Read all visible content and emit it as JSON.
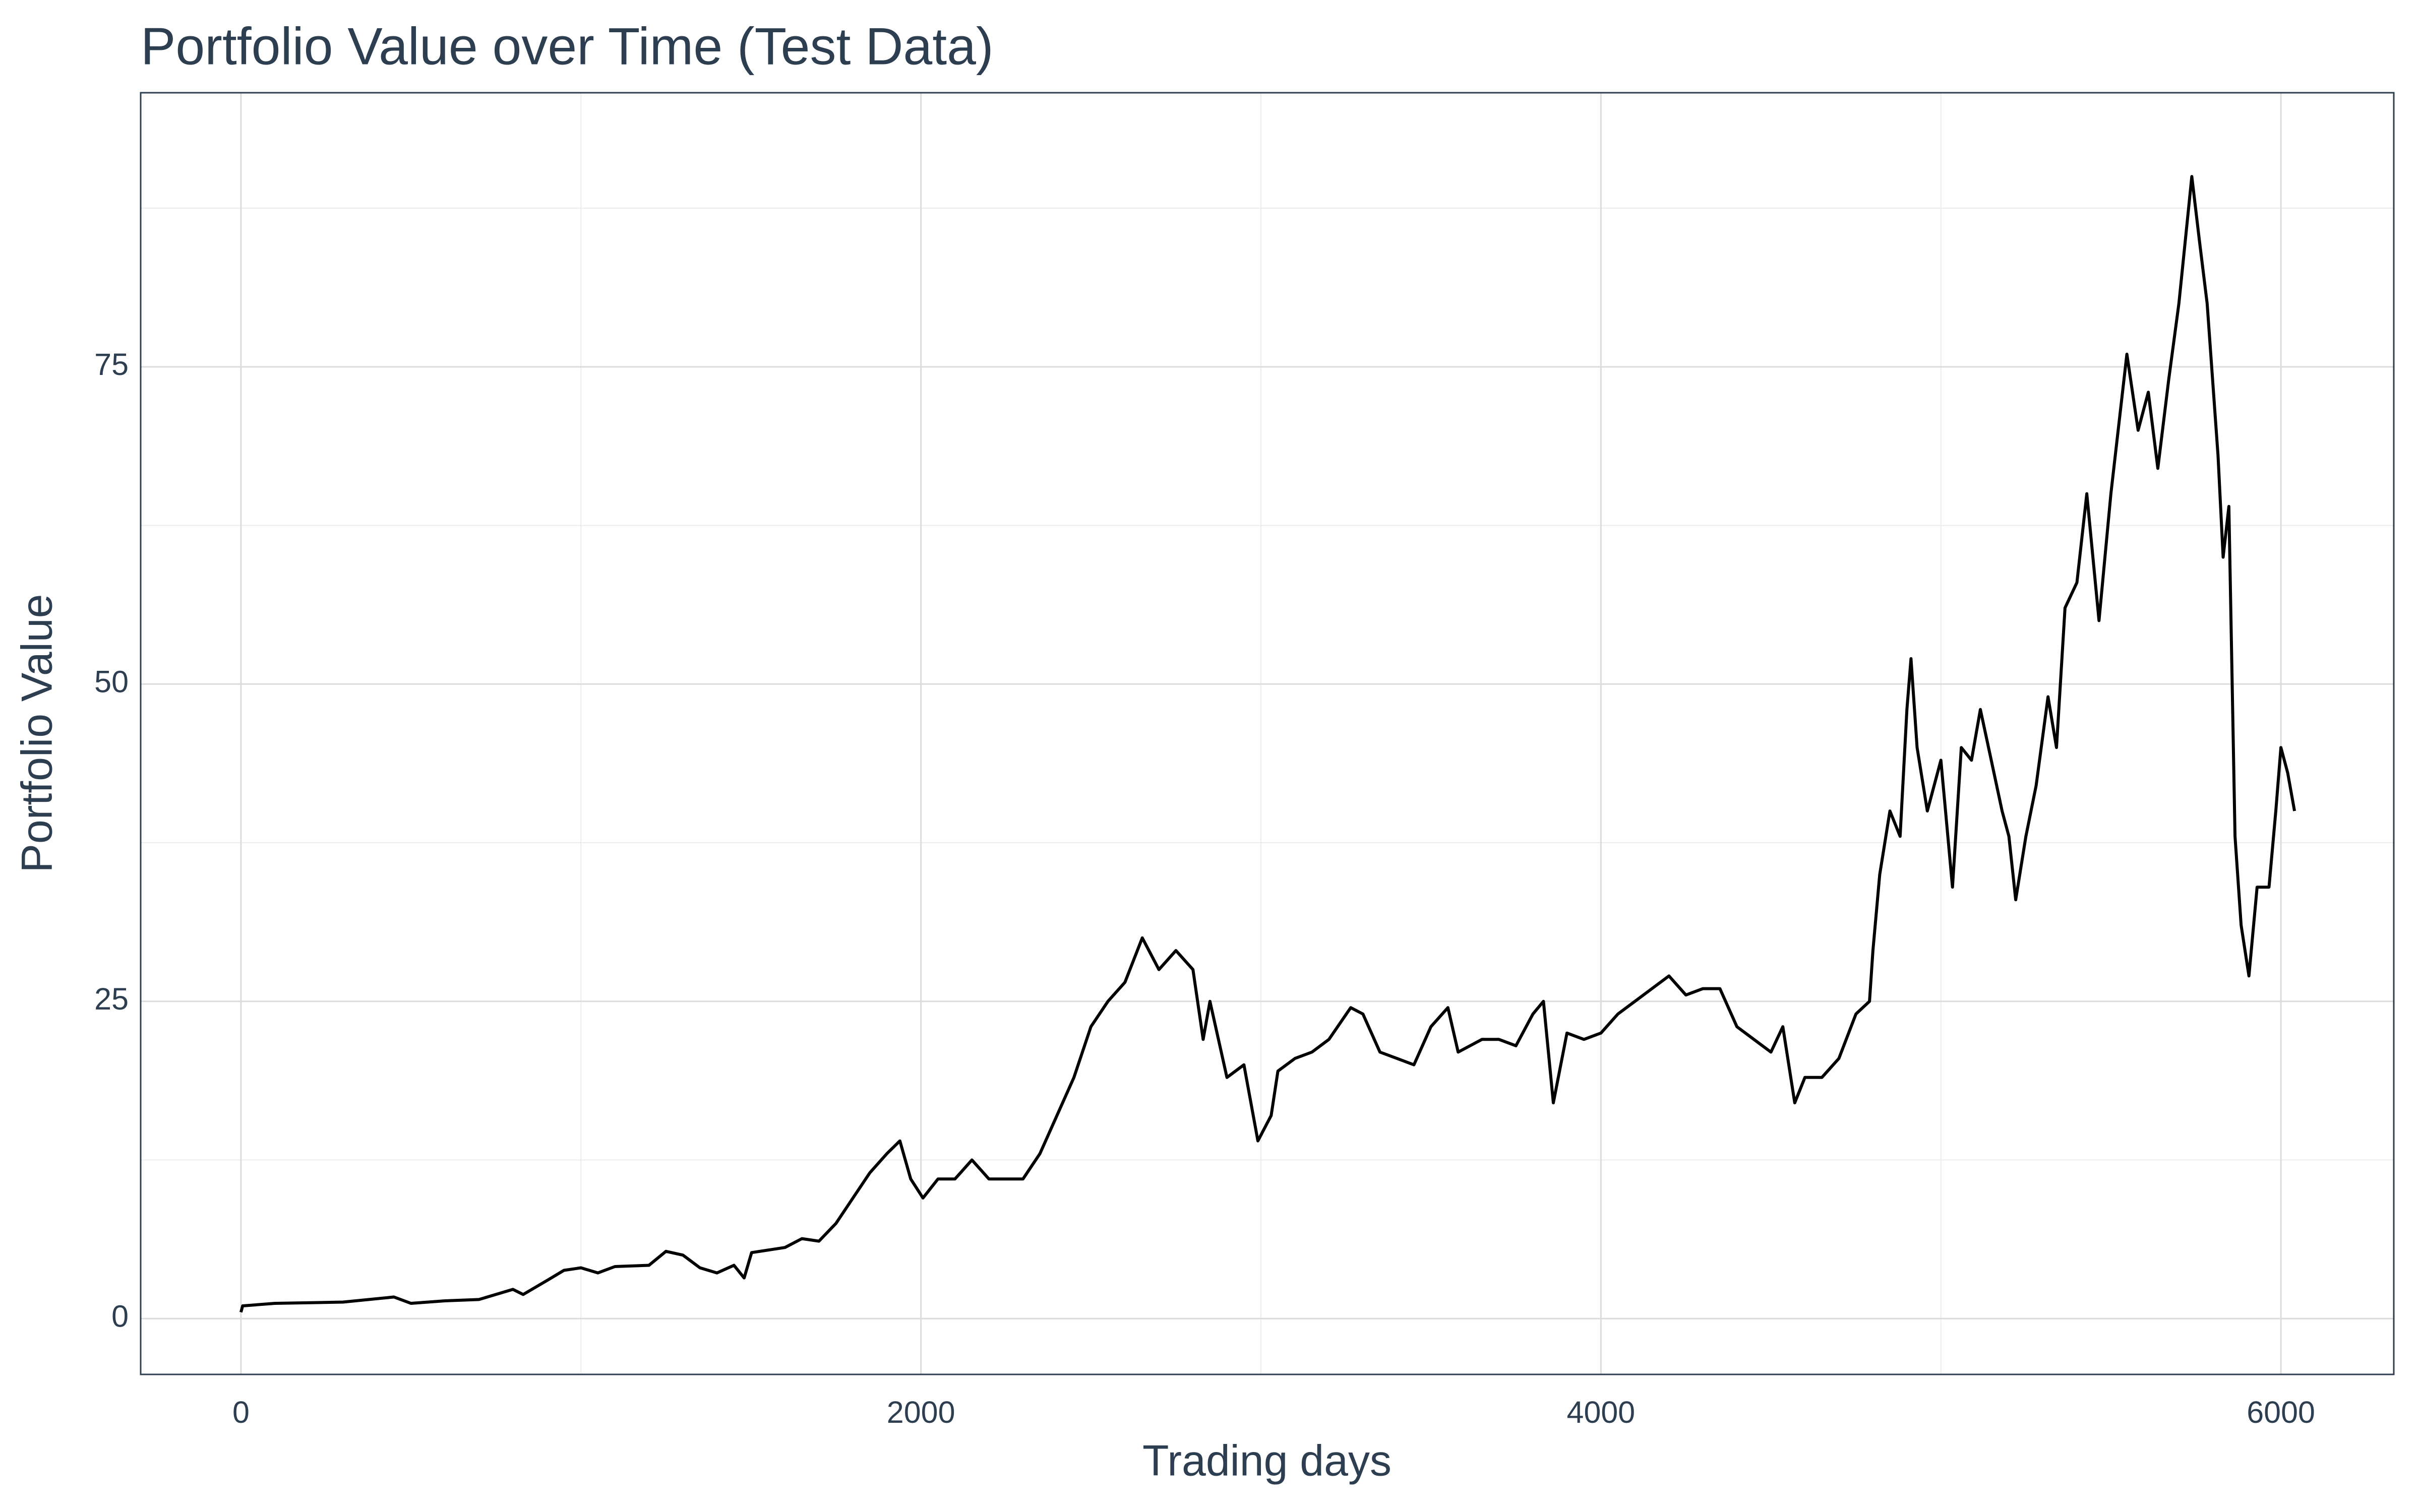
{
  "chart_data": {
    "type": "line",
    "title": "Portfolio Value over Time (Test Data)",
    "x_label": "Trading days",
    "y_label": "Portfolio Value",
    "xlim": [
      -295,
      6332
    ],
    "ylim": [
      -4.4,
      96.6
    ],
    "xticks": [
      0,
      2000,
      4000,
      6000
    ],
    "yticks": [
      0,
      25,
      50,
      75
    ],
    "grid": true,
    "series": [
      {
        "name": "Portfolio Value",
        "color": "#000000",
        "x": [
          0,
          5,
          100,
          300,
          450,
          500,
          600,
          700,
          800,
          830,
          900,
          950,
          1000,
          1050,
          1100,
          1200,
          1250,
          1300,
          1350,
          1400,
          1450,
          1480,
          1502,
          1600,
          1650,
          1700,
          1750,
          1800,
          1850,
          1900,
          1938,
          1970,
          2006,
          2050,
          2100,
          2150,
          2200,
          2250,
          2300,
          2350,
          2400,
          2450,
          2500,
          2550,
          2600,
          2651,
          2700,
          2750,
          2800,
          2830,
          2850,
          2900,
          2950,
          2991,
          3030,
          3050,
          3100,
          3150,
          3200,
          3264,
          3300,
          3350,
          3400,
          3450,
          3500,
          3550,
          3580,
          3650,
          3700,
          3750,
          3800,
          3831,
          3860,
          3900,
          3950,
          4000,
          4050,
          4100,
          4150,
          4200,
          4250,
          4300,
          4350,
          4400,
          4450,
          4500,
          4535,
          4570,
          4600,
          4650,
          4700,
          4750,
          4790,
          4800,
          4820,
          4850,
          4880,
          4900,
          4912,
          4930,
          4960,
          5000,
          5034,
          5060,
          5090,
          5116,
          5148,
          5180,
          5200,
          5220,
          5250,
          5280,
          5315,
          5340,
          5365,
          5400,
          5429,
          5465,
          5500,
          5547,
          5580,
          5610,
          5638,
          5670,
          5700,
          5738,
          5760,
          5783,
          5815,
          5830,
          5847,
          5865,
          5883,
          5906,
          5930,
          5965,
          5985,
          6000,
          6020,
          6040
        ],
        "values": [
          0.5,
          1.0,
          1.2,
          1.3,
          1.7,
          1.2,
          1.4,
          1.5,
          2.3,
          1.9,
          3.0,
          3.8,
          4.0,
          3.6,
          4.1,
          4.2,
          5.3,
          5.0,
          4.0,
          3.6,
          4.2,
          3.2,
          5.2,
          5.6,
          6.3,
          6.1,
          7.5,
          9.5,
          11.5,
          13,
          14,
          11,
          9.5,
          11,
          11,
          12.5,
          11,
          11,
          11,
          13,
          16,
          19,
          23,
          25,
          26.5,
          30,
          27.5,
          29,
          27.5,
          22,
          25,
          19,
          20,
          14,
          16,
          19.5,
          20.5,
          21,
          22,
          24.5,
          24,
          21,
          20.5,
          20,
          23,
          24.5,
          21,
          22,
          22,
          21.5,
          24,
          25,
          17,
          22.5,
          22,
          22.5,
          24,
          25,
          26,
          27,
          25.5,
          26,
          26,
          23,
          22,
          21,
          23,
          17,
          19,
          19,
          20.5,
          24,
          25,
          29,
          35,
          40,
          38,
          48,
          52,
          45,
          40,
          44,
          34,
          45,
          44,
          48,
          44,
          40,
          38,
          33,
          38,
          42,
          49,
          45,
          56,
          58,
          65,
          55,
          65,
          76,
          70,
          73,
          67,
          74,
          80,
          90,
          85,
          80,
          68,
          60,
          64,
          38,
          31,
          27,
          34,
          34,
          40,
          45,
          43,
          40
        ]
      }
    ]
  }
}
